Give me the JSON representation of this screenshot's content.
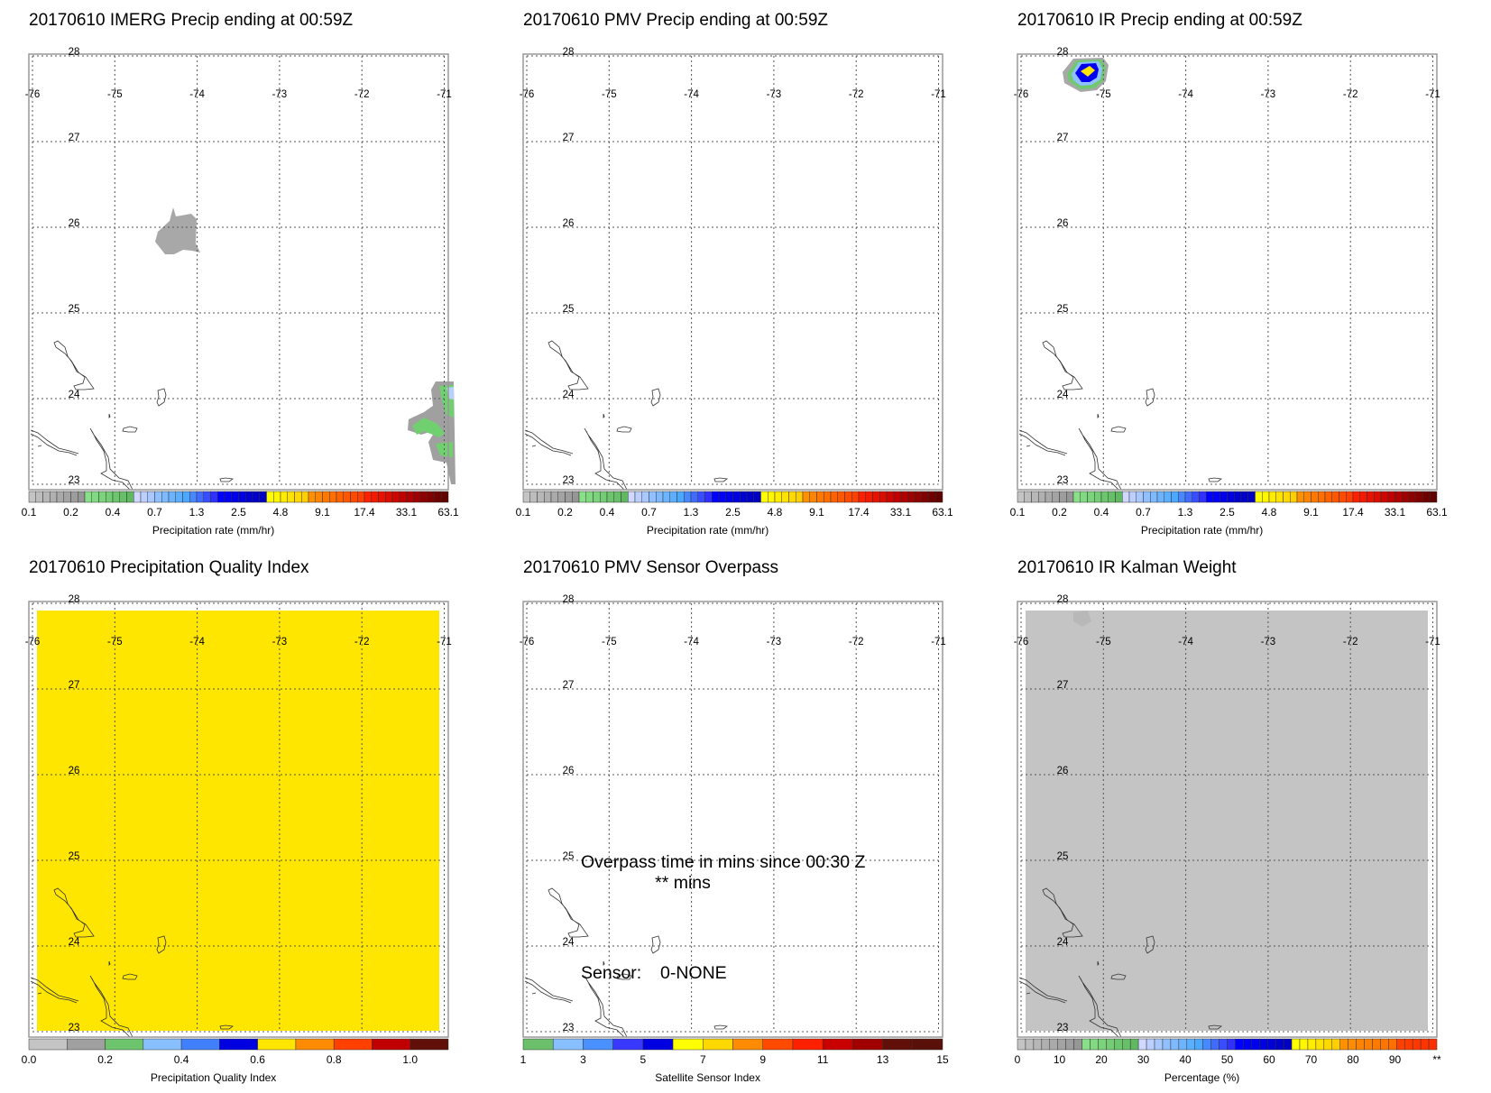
{
  "panels": [
    {
      "title": "20170610 IMERG Precip ending at 00:59Z",
      "colorbar": "precip",
      "features": [
        "imerg"
      ]
    },
    {
      "title": "20170610 PMV Precip ending at 00:59Z",
      "colorbar": "precip",
      "features": []
    },
    {
      "title": "20170610 IR Precip ending at 00:59Z",
      "colorbar": "precip",
      "features": [
        "ir"
      ]
    },
    {
      "title": "20170610 Precipitation Quality Index",
      "colorbar": "quality",
      "fill": "#ffe600",
      "features": []
    },
    {
      "title": "20170610 PMV Sensor Overpass",
      "colorbar": "sensor",
      "features": [
        "overpass"
      ]
    },
    {
      "title": "20170610 IR Kalman Weight",
      "colorbar": "percent",
      "fill": "#c4c4c4",
      "features": [
        "kalman"
      ]
    }
  ],
  "map": {
    "lon_labels": [
      "-76",
      "-75",
      "-74",
      "-73",
      "-72",
      "-71"
    ],
    "lat_labels": [
      "28",
      "27",
      "26",
      "25",
      "24",
      "23"
    ]
  },
  "overpass": {
    "line1": "Overpass time in mins since 00:30 Z",
    "line2": "** mins",
    "sensor_label": "Sensor:",
    "sensor_value": "0-NONE"
  },
  "colorbars": {
    "precip": {
      "title": "Precipitation rate (mm/hr)",
      "labels": [
        "0.1",
        "0.2",
        "0.4",
        "0.7",
        "1.3",
        "2.5",
        "4.8",
        "9.1",
        "17.4",
        "33.1",
        "63.1"
      ],
      "groups": [
        {
          "n": 8,
          "from": "#c4c4c4",
          "to": "#969696"
        },
        {
          "n": 7,
          "from": "#88e088",
          "to": "#60b860"
        },
        {
          "n": 3,
          "from": "#d0d8ff",
          "to": "#a8c8ff"
        },
        {
          "n": 5,
          "from": "#90c0ff",
          "to": "#4aa8ff"
        },
        {
          "n": 4,
          "from": "#4888ff",
          "to": "#3030ff"
        },
        {
          "n": 7,
          "from": "#0000ff",
          "to": "#0000c0"
        },
        {
          "n": 6,
          "from": "#ffff00",
          "to": "#ffd000"
        },
        {
          "n": 8,
          "from": "#ff9000",
          "to": "#ff4000"
        },
        {
          "n": 6,
          "from": "#ff2000",
          "to": "#c00000"
        },
        {
          "n": 6,
          "from": "#b00000",
          "to": "#600000"
        }
      ]
    },
    "quality": {
      "title": "Precipitation Quality Index",
      "labels": [
        "0.0",
        "0.2",
        "0.4",
        "0.6",
        "0.8",
        "1.0"
      ],
      "label_values": [
        0,
        0.2,
        0.4,
        0.6,
        0.8,
        1.0
      ],
      "range": [
        0,
        1.1
      ],
      "colors": [
        "#c4c4c4",
        "#a0a0a0",
        "#6cc46c",
        "#88c0ff",
        "#4080ff",
        "#0000e0",
        "#ffe600",
        "#ff8c00",
        "#ff4000",
        "#c00000",
        "#601008"
      ]
    },
    "sensor": {
      "title": "Satellite Sensor Index",
      "labels": [
        "1",
        "3",
        "5",
        "7",
        "9",
        "11",
        "13",
        "15"
      ],
      "label_values": [
        1,
        3,
        5,
        7,
        9,
        11,
        13,
        15
      ],
      "range": [
        1,
        15
      ],
      "colors": [
        "#6cc06c",
        "#88c0ff",
        "#4a90ff",
        "#3838ff",
        "#0000e0",
        "#ffff00",
        "#ffd800",
        "#ff8c00",
        "#ff4a00",
        "#ff2000",
        "#c80000",
        "#a00000",
        "#601008",
        "#581008"
      ]
    },
    "percent": {
      "title": "Percentage (%)",
      "labels": [
        "0",
        "10",
        "20",
        "30",
        "40",
        "50",
        "60",
        "70",
        "80",
        "90",
        "**"
      ],
      "groups": [
        {
          "n": 8,
          "from": "#c4c4c4",
          "to": "#969696"
        },
        {
          "n": 7,
          "from": "#88e088",
          "to": "#60b860"
        },
        {
          "n": 3,
          "from": "#d0d8ff",
          "to": "#a8c8ff"
        },
        {
          "n": 5,
          "from": "#90c0ff",
          "to": "#4aa8ff"
        },
        {
          "n": 4,
          "from": "#4888ff",
          "to": "#3030ff"
        },
        {
          "n": 7,
          "from": "#0000ff",
          "to": "#0000c0"
        },
        {
          "n": 6,
          "from": "#ffff00",
          "to": "#ffd000"
        },
        {
          "n": 7,
          "from": "#ff9000",
          "to": "#ff7000"
        },
        {
          "n": 5,
          "from": "#ff4000",
          "to": "#ff3000"
        }
      ]
    }
  },
  "chart_data": {
    "type": "heatmap",
    "description_fields": "six map panels, lon -76 to -71, lat 23 to 28",
    "xlim": [
      -76,
      -71
    ],
    "ylim": [
      23,
      28
    ]
  }
}
